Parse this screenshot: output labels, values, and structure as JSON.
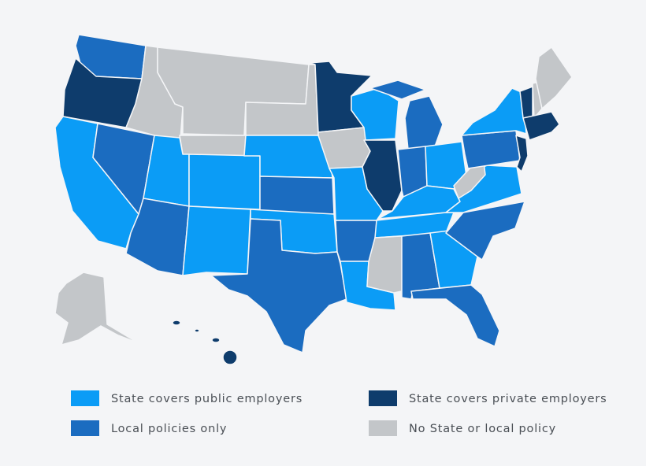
{
  "legend": [
    {
      "label": "State covers public employers",
      "color": "#0b9cf6"
    },
    {
      "label": "State covers private employers",
      "color": "#0e3c6c"
    },
    {
      "label": "Local policies only",
      "color": "#1b6cc0"
    },
    {
      "label": "No State or local policy",
      "color": "#c3c6c9"
    }
  ]
}
